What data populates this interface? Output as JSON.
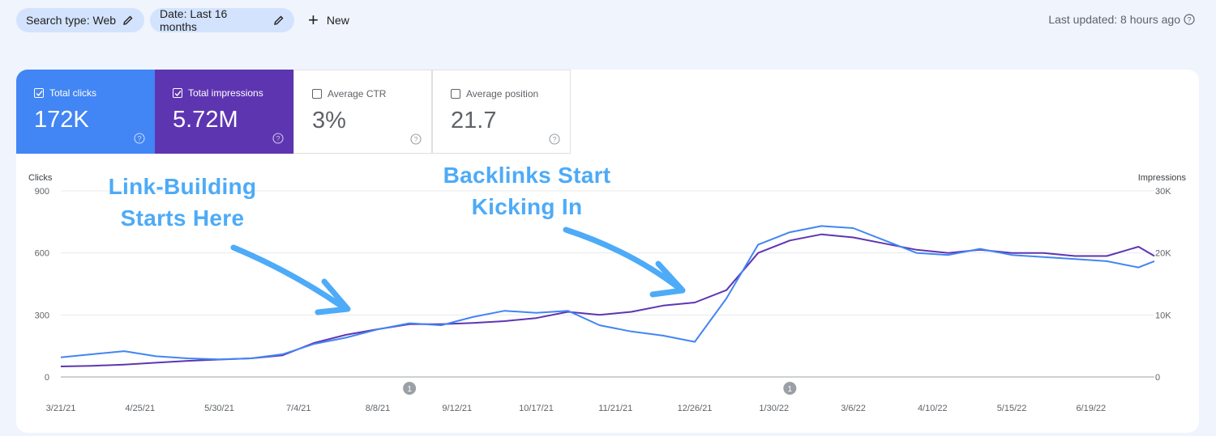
{
  "toolbar": {
    "search_type": "Search type: Web",
    "date_range": "Date: Last 16 months",
    "new_label": "New",
    "last_updated": "Last updated: 8 hours ago"
  },
  "metrics": [
    {
      "label": "Total clicks",
      "value": "172K",
      "checked": true
    },
    {
      "label": "Total impressions",
      "value": "5.72M",
      "checked": true
    },
    {
      "label": "Average CTR",
      "value": "3%",
      "checked": false
    },
    {
      "label": "Average position",
      "value": "21.7",
      "checked": false
    }
  ],
  "annotations": {
    "link_building": [
      "Link-Building",
      "Starts Here"
    ],
    "backlinks": [
      "Backlinks Start",
      "Kicking In"
    ]
  },
  "colors": {
    "clicks": "#4285f4",
    "impressions": "#5e35b1",
    "annotation": "#4dabf7",
    "chip": "#d3e3fd"
  },
  "chart_data": {
    "type": "line",
    "xlabel": "",
    "ylabel": "Clicks",
    "y2label": "Impressions",
    "ylim": [
      0,
      900
    ],
    "y2lim": [
      0,
      30000
    ],
    "yticks": [
      "0",
      "300",
      "600",
      "900"
    ],
    "y2ticks": [
      "0",
      "10K",
      "20K",
      "30K"
    ],
    "x_tick_labels": [
      "3/21/21",
      "4/25/21",
      "5/30/21",
      "7/4/21",
      "8/8/21",
      "9/12/21",
      "10/17/21",
      "11/21/21",
      "12/26/21",
      "1/30/22",
      "3/6/22",
      "4/10/22",
      "5/15/22",
      "6/19/22"
    ],
    "x": [
      "3/21/21",
      "4/4/21",
      "4/18/21",
      "5/2/21",
      "5/16/21",
      "5/30/21",
      "6/13/21",
      "6/27/21",
      "7/11/21",
      "7/25/21",
      "8/8/21",
      "8/22/21",
      "9/5/21",
      "9/19/21",
      "10/3/21",
      "10/17/21",
      "10/31/21",
      "11/14/21",
      "11/28/21",
      "12/12/21",
      "12/26/21",
      "1/9/22",
      "1/23/22",
      "2/6/22",
      "2/20/22",
      "3/6/22",
      "3/20/22",
      "4/3/22",
      "4/17/22",
      "5/1/22",
      "5/15/22",
      "5/29/22",
      "6/12/22",
      "6/26/22",
      "7/10/22",
      "7/17/22"
    ],
    "series": [
      {
        "name": "Clicks",
        "axis": "left",
        "values": [
          95,
          110,
          125,
          100,
          90,
          85,
          90,
          110,
          160,
          190,
          230,
          260,
          250,
          290,
          320,
          310,
          320,
          250,
          220,
          200,
          170,
          380,
          640,
          700,
          730,
          720,
          660,
          600,
          590,
          620,
          590,
          580,
          570,
          560,
          530,
          560
        ]
      },
      {
        "name": "Impressions",
        "axis": "right",
        "values": [
          1700,
          1800,
          2000,
          2300,
          2600,
          2800,
          3000,
          3500,
          5500,
          6800,
          7700,
          8500,
          8500,
          8700,
          9000,
          9500,
          10500,
          10000,
          10500,
          11500,
          12000,
          14000,
          20000,
          22000,
          23000,
          22500,
          21500,
          20500,
          20000,
          20500,
          20000,
          20000,
          19500,
          19500,
          21000,
          19500
        ]
      }
    ],
    "event_markers": [
      {
        "x": "8/22/21",
        "label": "1"
      },
      {
        "x": "2/6/22",
        "label": "1"
      }
    ]
  }
}
